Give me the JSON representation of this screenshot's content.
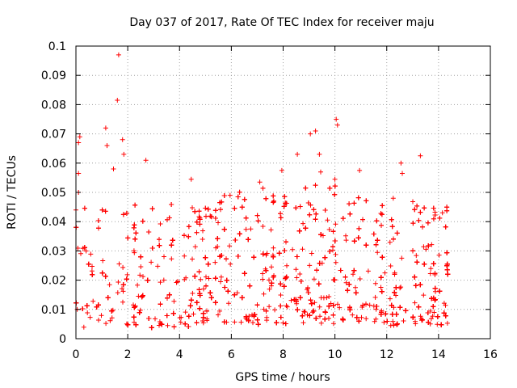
{
  "chart_data": {
    "type": "scatter",
    "title": "Day 037 of 2017, Rate Of TEC Index for receiver maju",
    "xlabel": "GPS time / hours",
    "ylabel": "ROTI / TECUs",
    "xlim": [
      0,
      16
    ],
    "ylim": [
      0,
      0.1
    ],
    "xticks": [
      "0",
      "2",
      "4",
      "6",
      "8",
      "10",
      "12",
      "14",
      "16"
    ],
    "yticks": [
      "0",
      "0.01",
      "0.02",
      "0.03",
      "0.04",
      "0.05",
      "0.06",
      "0.07",
      "0.08",
      "0.09",
      "0.1"
    ],
    "grid": true,
    "marker": "+",
    "series_color": "#ff0000",
    "data_span_hours": [
      0,
      14.4
    ],
    "notable_points": [
      {
        "x": 1.65,
        "y": 0.097
      },
      {
        "x": 1.6,
        "y": 0.0815
      },
      {
        "x": 10.05,
        "y": 0.075
      },
      {
        "x": 10.1,
        "y": 0.073
      },
      {
        "x": 1.15,
        "y": 0.072
      },
      {
        "x": 9.25,
        "y": 0.071
      },
      {
        "x": 9.05,
        "y": 0.07
      },
      {
        "x": 0.15,
        "y": 0.069
      },
      {
        "x": 1.8,
        "y": 0.068
      },
      {
        "x": 0.1,
        "y": 0.067
      },
      {
        "x": 1.2,
        "y": 0.066
      },
      {
        "x": 1.85,
        "y": 0.063
      },
      {
        "x": 8.55,
        "y": 0.063
      },
      {
        "x": 9.4,
        "y": 0.063
      },
      {
        "x": 13.3,
        "y": 0.0625
      },
      {
        "x": 2.7,
        "y": 0.061
      },
      {
        "x": 12.55,
        "y": 0.06
      },
      {
        "x": 1.45,
        "y": 0.058
      },
      {
        "x": 7.95,
        "y": 0.0575
      },
      {
        "x": 10.95,
        "y": 0.0575
      },
      {
        "x": 9.45,
        "y": 0.057
      },
      {
        "x": 12.6,
        "y": 0.0565
      },
      {
        "x": 0.1,
        "y": 0.0565
      },
      {
        "x": 4.45,
        "y": 0.0545
      },
      {
        "x": 7.1,
        "y": 0.0535
      },
      {
        "x": 10.0,
        "y": 0.0545
      },
      {
        "x": 0.1,
        "y": 0.05
      },
      {
        "x": 5.95,
        "y": 0.049
      },
      {
        "x": 12.25,
        "y": 0.048
      },
      {
        "x": 0.0,
        "y": 0.044
      },
      {
        "x": 14.15,
        "y": 0.043
      }
    ],
    "density_profile": {
      "description": "bulk baseline range per hour (approximate)",
      "hours": [
        0,
        1,
        2,
        3,
        4,
        5,
        6,
        7,
        8,
        9,
        10,
        11,
        12,
        13,
        14
      ],
      "low": [
        0.004,
        0.005,
        0.004,
        0.004,
        0.004,
        0.005,
        0.005,
        0.005,
        0.005,
        0.006,
        0.006,
        0.006,
        0.005,
        0.005,
        0.004
      ],
      "high": [
        0.032,
        0.035,
        0.034,
        0.033,
        0.035,
        0.034,
        0.038,
        0.04,
        0.038,
        0.04,
        0.042,
        0.036,
        0.035,
        0.036,
        0.034
      ]
    }
  }
}
